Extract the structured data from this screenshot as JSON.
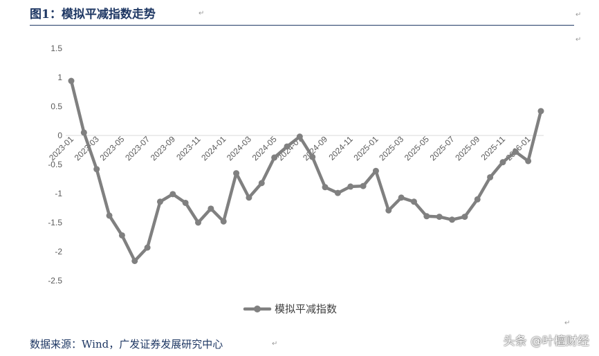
{
  "header": {
    "title": "图1：模拟平减指数走势"
  },
  "footer": {
    "source": "数据来源：Wind，广发证券发展研究中心",
    "watermark": "头条 @叶檀财经"
  },
  "chart_data": {
    "type": "line",
    "title": "",
    "xlabel": "",
    "ylabel": "",
    "ylim": [
      -2.5,
      1.5
    ],
    "yticks": [
      "1.5",
      "1",
      "0.5",
      "0",
      "-0.5",
      "-1",
      "-1.5",
      "-2",
      "-2.5"
    ],
    "x_tick_labels": [
      "2023-01",
      "2023-03",
      "2023-05",
      "2023-07",
      "2023-09",
      "2023-11",
      "2024-01",
      "2024-03",
      "2024-05",
      "2024-07",
      "2024-09",
      "2024-11",
      "2025-01",
      "2025-03",
      "2025-05",
      "2025-07",
      "2025-09",
      "2025-11",
      "2026-01"
    ],
    "legend_position": "bottom",
    "series": [
      {
        "name": "模拟平减指数",
        "color": "#808080",
        "points": [
          [
            "2023-01",
            0.94
          ],
          [
            "2023-02",
            0.05
          ],
          [
            "2023-03",
            -0.58
          ],
          [
            "2023-04",
            -1.38
          ],
          [
            "2023-05",
            -1.72
          ],
          [
            "2023-06",
            -2.16
          ],
          [
            "2023-07",
            -1.93
          ],
          [
            "2023-08",
            -1.14
          ],
          [
            "2023-09",
            -1.01
          ],
          [
            "2023-10",
            -1.16
          ],
          [
            "2023-11",
            -1.5
          ],
          [
            "2023-12",
            -1.26
          ],
          [
            "2024-01",
            -1.48
          ],
          [
            "2024-02",
            -0.65
          ],
          [
            "2024-03",
            -1.07
          ],
          [
            "2024-04",
            -0.82
          ],
          [
            "2024-05",
            -0.38
          ],
          [
            "2024-06",
            -0.19
          ],
          [
            "2024-07",
            -0.02
          ],
          [
            "2024-08",
            -0.37
          ],
          [
            "2024-09",
            -0.89
          ],
          [
            "2024-10",
            -0.99
          ],
          [
            "2024-11",
            -0.88
          ],
          [
            "2024-12",
            -0.87
          ],
          [
            "2025-01",
            -0.61
          ],
          [
            "2025-02",
            -1.29
          ],
          [
            "2025-03",
            -1.07
          ],
          [
            "2025-04",
            -1.14
          ],
          [
            "2025-05",
            -1.39
          ],
          [
            "2025-06",
            -1.4
          ],
          [
            "2025-07",
            -1.45
          ],
          [
            "2025-08",
            -1.4
          ],
          [
            "2025-09",
            -1.1
          ],
          [
            "2025-10",
            -0.72
          ],
          [
            "2025-11",
            -0.46
          ],
          [
            "2025-12",
            -0.28
          ],
          [
            "2026-01",
            -0.44
          ],
          [
            "2026-02",
            0.42
          ]
        ]
      }
    ]
  }
}
